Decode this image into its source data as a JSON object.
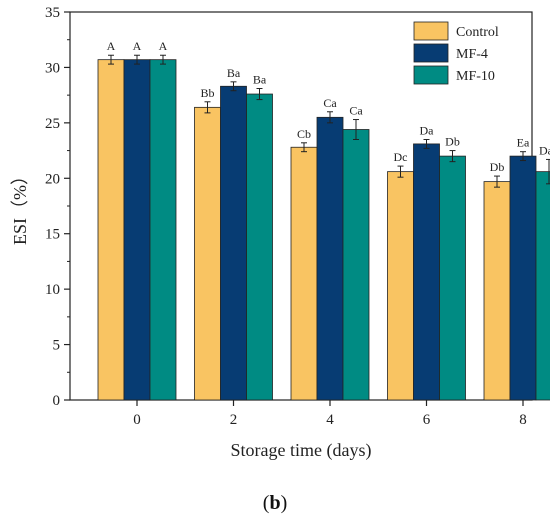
{
  "chart_data": {
    "type": "bar",
    "xlabel": "Storage time (days)",
    "ylabel": "ESI（%）",
    "categories": [
      "0",
      "2",
      "4",
      "6",
      "8"
    ],
    "ylim": [
      0,
      35
    ],
    "yticks": [
      0,
      5,
      10,
      15,
      20,
      25,
      30,
      35
    ],
    "grid": false,
    "legend_position": "top-right",
    "series": [
      {
        "name": "Control",
        "color": "#F9C462",
        "values": [
          30.7,
          26.4,
          22.8,
          20.6,
          19.7
        ],
        "errors": [
          0.4,
          0.5,
          0.4,
          0.5,
          0.5
        ],
        "labels": [
          "A",
          "Bb",
          "Cb",
          "Dc",
          "Db"
        ]
      },
      {
        "name": "MF-4",
        "color": "#073C73",
        "values": [
          30.7,
          28.3,
          25.5,
          23.1,
          22.0
        ],
        "errors": [
          0.4,
          0.4,
          0.5,
          0.4,
          0.4
        ],
        "labels": [
          "A",
          "Ba",
          "Ca",
          "Da",
          "Ea"
        ]
      },
      {
        "name": "MF-10",
        "color": "#008B83",
        "values": [
          30.7,
          27.6,
          24.4,
          22.0,
          20.6
        ],
        "errors": [
          0.4,
          0.5,
          0.9,
          0.5,
          1.1
        ],
        "labels": [
          "A",
          "Ba",
          "Ca",
          "Db",
          "Dab"
        ]
      }
    ]
  },
  "caption": {
    "open": "(",
    "letter": "b",
    "close": ")"
  }
}
